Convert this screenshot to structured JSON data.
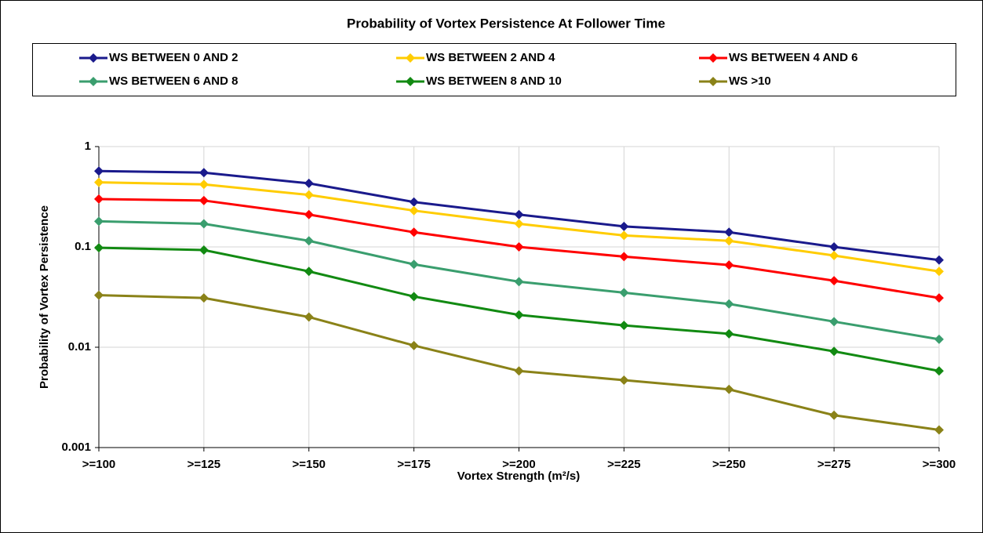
{
  "chart_data": {
    "type": "line",
    "title": "Probability of Vortex Persistence At Follower Time",
    "x_label": "Vortex Strength (m²/s)",
    "y_label": "Probability of Vortex Persistence",
    "categories": [
      ">=100",
      ">=125",
      ">=150",
      ">=175",
      ">=200",
      ">=225",
      ">=250",
      ">=275",
      ">=300"
    ],
    "log_scale": true,
    "grid": true,
    "legend": "top",
    "ylim": [
      0.001,
      1
    ],
    "yticks": [
      0.001,
      0.01,
      0.1,
      1
    ],
    "series": [
      {
        "name": "WS BETWEEN 0 AND 2",
        "color": "#1a1a8c",
        "values": [
          0.57,
          0.55,
          0.43,
          0.28,
          0.21,
          0.16,
          0.14,
          0.1,
          0.074
        ]
      },
      {
        "name": "WS BETWEEN 2 AND 4",
        "color": "#ffcc00",
        "values": [
          0.44,
          0.42,
          0.33,
          0.23,
          0.17,
          0.13,
          0.115,
          0.082,
          0.057
        ]
      },
      {
        "name": "WS BETWEEN 4 AND 6",
        "color": "#ff0000",
        "values": [
          0.3,
          0.29,
          0.21,
          0.14,
          0.1,
          0.08,
          0.066,
          0.046,
          0.031
        ]
      },
      {
        "name": "WS BETWEEN 6 AND 8",
        "color": "#3a9e6e",
        "values": [
          0.18,
          0.17,
          0.115,
          0.067,
          0.045,
          0.035,
          0.027,
          0.018,
          0.012
        ]
      },
      {
        "name": "WS BETWEEN 8 AND 10",
        "color": "#128a12",
        "values": [
          0.098,
          0.093,
          0.057,
          0.032,
          0.021,
          0.0165,
          0.0136,
          0.0091,
          0.0058
        ]
      },
      {
        "name": "WS >10",
        "color": "#8a8218",
        "values": [
          0.033,
          0.031,
          0.02,
          0.0104,
          0.0058,
          0.0047,
          0.0038,
          0.0021,
          0.0015
        ]
      }
    ]
  }
}
